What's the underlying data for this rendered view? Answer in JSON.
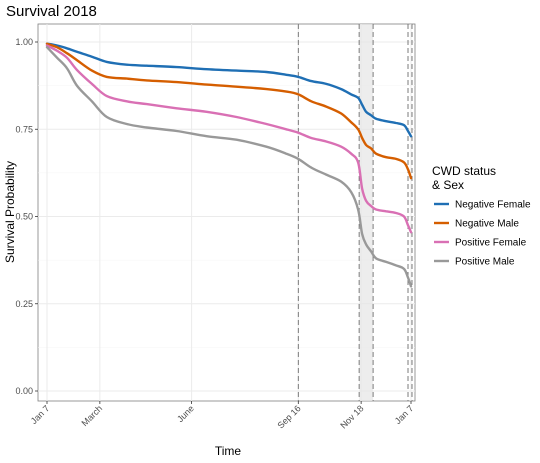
{
  "chart_data": {
    "type": "line",
    "title": "Survival 2018",
    "xlabel": "Time",
    "ylabel": "Survival Probability",
    "x_ticks": [
      "Jan 7",
      "March",
      "June",
      "Sep 16",
      "Nov 18",
      "Jan 7"
    ],
    "x_tick_days": [
      0,
      53,
      145,
      252,
      315,
      365
    ],
    "x_range_days": [
      0,
      365
    ],
    "ylim": [
      0,
      1
    ],
    "y_ticks": [
      "0.00",
      "0.25",
      "0.50",
      "0.75",
      "1.00"
    ],
    "y_tick_values": [
      0,
      0.25,
      0.5,
      0.75,
      1.0
    ],
    "grid": true,
    "shaded_band_days": [
      313,
      327
    ],
    "dashed_lines_days": [
      252,
      313,
      327,
      362,
      366
    ],
    "legend": {
      "title_line1": "CWD status",
      "title_line2": "& Sex",
      "position": "right"
    },
    "series": [
      {
        "name": "Negative Female",
        "color": "#1f6fb4",
        "x": [
          0,
          10,
          20,
          30,
          45,
          60,
          80,
          100,
          130,
          160,
          190,
          220,
          240,
          252,
          265,
          280,
          295,
          305,
          312,
          316,
          320,
          325,
          330,
          340,
          350,
          358,
          362,
          365
        ],
        "y": [
          0.995,
          0.99,
          0.982,
          0.972,
          0.958,
          0.943,
          0.935,
          0.932,
          0.928,
          0.922,
          0.918,
          0.914,
          0.906,
          0.9,
          0.888,
          0.88,
          0.865,
          0.85,
          0.84,
          0.82,
          0.8,
          0.79,
          0.78,
          0.773,
          0.768,
          0.762,
          0.745,
          0.73
        ]
      },
      {
        "name": "Negative Male",
        "color": "#d55e00",
        "x": [
          0,
          10,
          20,
          30,
          45,
          60,
          80,
          100,
          130,
          160,
          190,
          220,
          240,
          252,
          265,
          280,
          295,
          305,
          312,
          316,
          320,
          325,
          330,
          340,
          350,
          358,
          362,
          365
        ],
        "y": [
          0.995,
          0.985,
          0.968,
          0.948,
          0.918,
          0.9,
          0.895,
          0.89,
          0.885,
          0.878,
          0.872,
          0.865,
          0.858,
          0.85,
          0.83,
          0.815,
          0.795,
          0.77,
          0.75,
          0.725,
          0.705,
          0.695,
          0.68,
          0.67,
          0.665,
          0.655,
          0.635,
          0.61
        ]
      },
      {
        "name": "Positive Female",
        "color": "#d970b4",
        "x": [
          0,
          10,
          20,
          30,
          45,
          60,
          80,
          100,
          130,
          160,
          190,
          220,
          240,
          252,
          265,
          280,
          295,
          305,
          312,
          316,
          320,
          325,
          330,
          340,
          350,
          358,
          362,
          365
        ],
        "y": [
          0.99,
          0.975,
          0.955,
          0.92,
          0.88,
          0.845,
          0.83,
          0.822,
          0.81,
          0.8,
          0.785,
          0.765,
          0.75,
          0.74,
          0.725,
          0.715,
          0.7,
          0.68,
          0.655,
          0.58,
          0.545,
          0.53,
          0.52,
          0.515,
          0.51,
          0.5,
          0.475,
          0.455
        ]
      },
      {
        "name": "Positive Male",
        "color": "#999999",
        "x": [
          0,
          10,
          20,
          30,
          45,
          60,
          80,
          100,
          130,
          160,
          190,
          220,
          240,
          252,
          265,
          280,
          295,
          305,
          312,
          316,
          320,
          325,
          330,
          340,
          350,
          358,
          362,
          365
        ],
        "y": [
          0.985,
          0.955,
          0.925,
          0.875,
          0.83,
          0.785,
          0.765,
          0.755,
          0.745,
          0.73,
          0.72,
          0.7,
          0.68,
          0.665,
          0.64,
          0.62,
          0.6,
          0.57,
          0.52,
          0.45,
          0.42,
          0.4,
          0.38,
          0.37,
          0.36,
          0.35,
          0.325,
          0.3
        ]
      }
    ]
  }
}
